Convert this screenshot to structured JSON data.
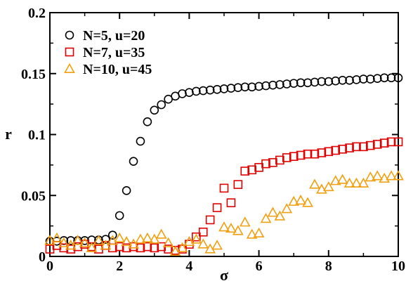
{
  "chart_data": {
    "type": "scatter",
    "title": "",
    "xlabel": "σ",
    "ylabel": "r",
    "xlim": [
      0,
      10
    ],
    "ylim": [
      0,
      0.2
    ],
    "xticks": [
      0,
      2,
      4,
      6,
      8,
      10
    ],
    "xtick_labels": [
      "0",
      "2",
      "4",
      "6",
      "8",
      "10"
    ],
    "yticks": [
      0,
      0.05,
      0.1,
      0.15,
      0.2
    ],
    "ytick_labels": [
      "0",
      "0.05",
      "0.1",
      "0.15",
      "0.2"
    ],
    "grid": false,
    "legend": "top-left",
    "series": [
      {
        "name": "N=5, u=20",
        "marker": "circle",
        "color": "#000000",
        "points": [
          [
            0.0,
            0.0125
          ],
          [
            0.2,
            0.0125
          ],
          [
            0.4,
            0.013
          ],
          [
            0.6,
            0.013
          ],
          [
            0.8,
            0.013
          ],
          [
            1.0,
            0.013
          ],
          [
            1.2,
            0.0135
          ],
          [
            1.4,
            0.0135
          ],
          [
            1.6,
            0.014
          ],
          [
            1.8,
            0.0175
          ],
          [
            2.0,
            0.0335
          ],
          [
            2.2,
            0.054
          ],
          [
            2.4,
            0.078
          ],
          [
            2.6,
            0.0945
          ],
          [
            2.8,
            0.1105
          ],
          [
            3.0,
            0.12
          ],
          [
            3.2,
            0.1245
          ],
          [
            3.4,
            0.129
          ],
          [
            3.6,
            0.1315
          ],
          [
            3.8,
            0.1335
          ],
          [
            4.0,
            0.1345
          ],
          [
            4.2,
            0.1355
          ],
          [
            4.4,
            0.136
          ],
          [
            4.6,
            0.1365
          ],
          [
            4.8,
            0.137
          ],
          [
            5.0,
            0.1375
          ],
          [
            5.2,
            0.138
          ],
          [
            5.4,
            0.1385
          ],
          [
            5.6,
            0.139
          ],
          [
            5.8,
            0.139
          ],
          [
            6.0,
            0.1395
          ],
          [
            6.2,
            0.14
          ],
          [
            6.4,
            0.1405
          ],
          [
            6.6,
            0.141
          ],
          [
            6.8,
            0.1415
          ],
          [
            7.0,
            0.142
          ],
          [
            7.2,
            0.1425
          ],
          [
            7.4,
            0.1425
          ],
          [
            7.6,
            0.143
          ],
          [
            7.8,
            0.1435
          ],
          [
            8.0,
            0.1435
          ],
          [
            8.2,
            0.144
          ],
          [
            8.4,
            0.1445
          ],
          [
            8.6,
            0.1445
          ],
          [
            8.8,
            0.145
          ],
          [
            9.0,
            0.1455
          ],
          [
            9.2,
            0.1455
          ],
          [
            9.4,
            0.146
          ],
          [
            9.6,
            0.1465
          ],
          [
            9.8,
            0.1465
          ],
          [
            10.0,
            0.1465
          ]
        ]
      },
      {
        "name": "N=7, u=35",
        "marker": "square",
        "color": "#e00000",
        "points": [
          [
            0.0,
            0.006
          ],
          [
            0.2,
            0.009
          ],
          [
            0.4,
            0.007
          ],
          [
            0.6,
            0.006
          ],
          [
            0.8,
            0.008
          ],
          [
            1.0,
            0.01
          ],
          [
            1.2,
            0.008
          ],
          [
            1.4,
            0.006
          ],
          [
            1.6,
            0.009
          ],
          [
            1.8,
            0.007
          ],
          [
            2.0,
            0.008
          ],
          [
            2.2,
            0.007
          ],
          [
            2.4,
            0.008
          ],
          [
            2.6,
            0.007
          ],
          [
            2.8,
            0.008
          ],
          [
            3.0,
            0.007
          ],
          [
            3.2,
            0.008
          ],
          [
            3.4,
            0.006
          ],
          [
            3.6,
            0.005
          ],
          [
            3.8,
            0.006
          ],
          [
            4.0,
            0.01
          ],
          [
            4.2,
            0.016
          ],
          [
            4.4,
            0.02
          ],
          [
            4.6,
            0.03
          ],
          [
            4.8,
            0.04
          ],
          [
            5.0,
            0.056
          ],
          [
            5.2,
            0.044
          ],
          [
            5.4,
            0.059
          ],
          [
            5.6,
            0.07
          ],
          [
            5.8,
            0.071
          ],
          [
            6.0,
            0.073
          ],
          [
            6.2,
            0.076
          ],
          [
            6.4,
            0.077
          ],
          [
            6.6,
            0.079
          ],
          [
            6.8,
            0.081
          ],
          [
            7.0,
            0.082
          ],
          [
            7.2,
            0.083
          ],
          [
            7.4,
            0.084
          ],
          [
            7.6,
            0.084
          ],
          [
            7.8,
            0.085
          ],
          [
            8.0,
            0.086
          ],
          [
            8.2,
            0.087
          ],
          [
            8.4,
            0.088
          ],
          [
            8.6,
            0.089
          ],
          [
            8.8,
            0.09
          ],
          [
            9.0,
            0.09
          ],
          [
            9.2,
            0.091
          ],
          [
            9.4,
            0.092
          ],
          [
            9.6,
            0.093
          ],
          [
            9.8,
            0.094
          ],
          [
            10.0,
            0.094
          ]
        ]
      },
      {
        "name": "N=10, u=45",
        "marker": "triangle",
        "color": "#f0a010",
        "points": [
          [
            0.0,
            0.013
          ],
          [
            0.2,
            0.015
          ],
          [
            0.4,
            0.011
          ],
          [
            0.6,
            0.009
          ],
          [
            0.8,
            0.013
          ],
          [
            1.0,
            0.011
          ],
          [
            1.2,
            0.007
          ],
          [
            1.4,
            0.013
          ],
          [
            1.6,
            0.009
          ],
          [
            1.8,
            0.013
          ],
          [
            2.0,
            0.015
          ],
          [
            2.2,
            0.012
          ],
          [
            2.4,
            0.01
          ],
          [
            2.6,
            0.014
          ],
          [
            2.8,
            0.015
          ],
          [
            3.0,
            0.014
          ],
          [
            3.2,
            0.018
          ],
          [
            3.4,
            0.011
          ],
          [
            3.6,
            0.004
          ],
          [
            3.8,
            0.007
          ],
          [
            4.0,
            0.012
          ],
          [
            4.2,
            0.014
          ],
          [
            4.4,
            0.01
          ],
          [
            4.6,
            0.006
          ],
          [
            4.8,
            0.009
          ],
          [
            5.0,
            0.024
          ],
          [
            5.2,
            0.023
          ],
          [
            5.4,
            0.021
          ],
          [
            5.6,
            0.028
          ],
          [
            5.8,
            0.018
          ],
          [
            6.0,
            0.019
          ],
          [
            6.2,
            0.031
          ],
          [
            6.4,
            0.036
          ],
          [
            6.6,
            0.033
          ],
          [
            6.8,
            0.039
          ],
          [
            7.0,
            0.045
          ],
          [
            7.2,
            0.046
          ],
          [
            7.4,
            0.044
          ],
          [
            7.6,
            0.059
          ],
          [
            7.8,
            0.055
          ],
          [
            8.0,
            0.057
          ],
          [
            8.2,
            0.062
          ],
          [
            8.4,
            0.063
          ],
          [
            8.6,
            0.06
          ],
          [
            8.8,
            0.06
          ],
          [
            9.0,
            0.06
          ],
          [
            9.2,
            0.065
          ],
          [
            9.4,
            0.066
          ],
          [
            9.6,
            0.064
          ],
          [
            9.8,
            0.066
          ],
          [
            10.0,
            0.066
          ]
        ]
      }
    ]
  }
}
